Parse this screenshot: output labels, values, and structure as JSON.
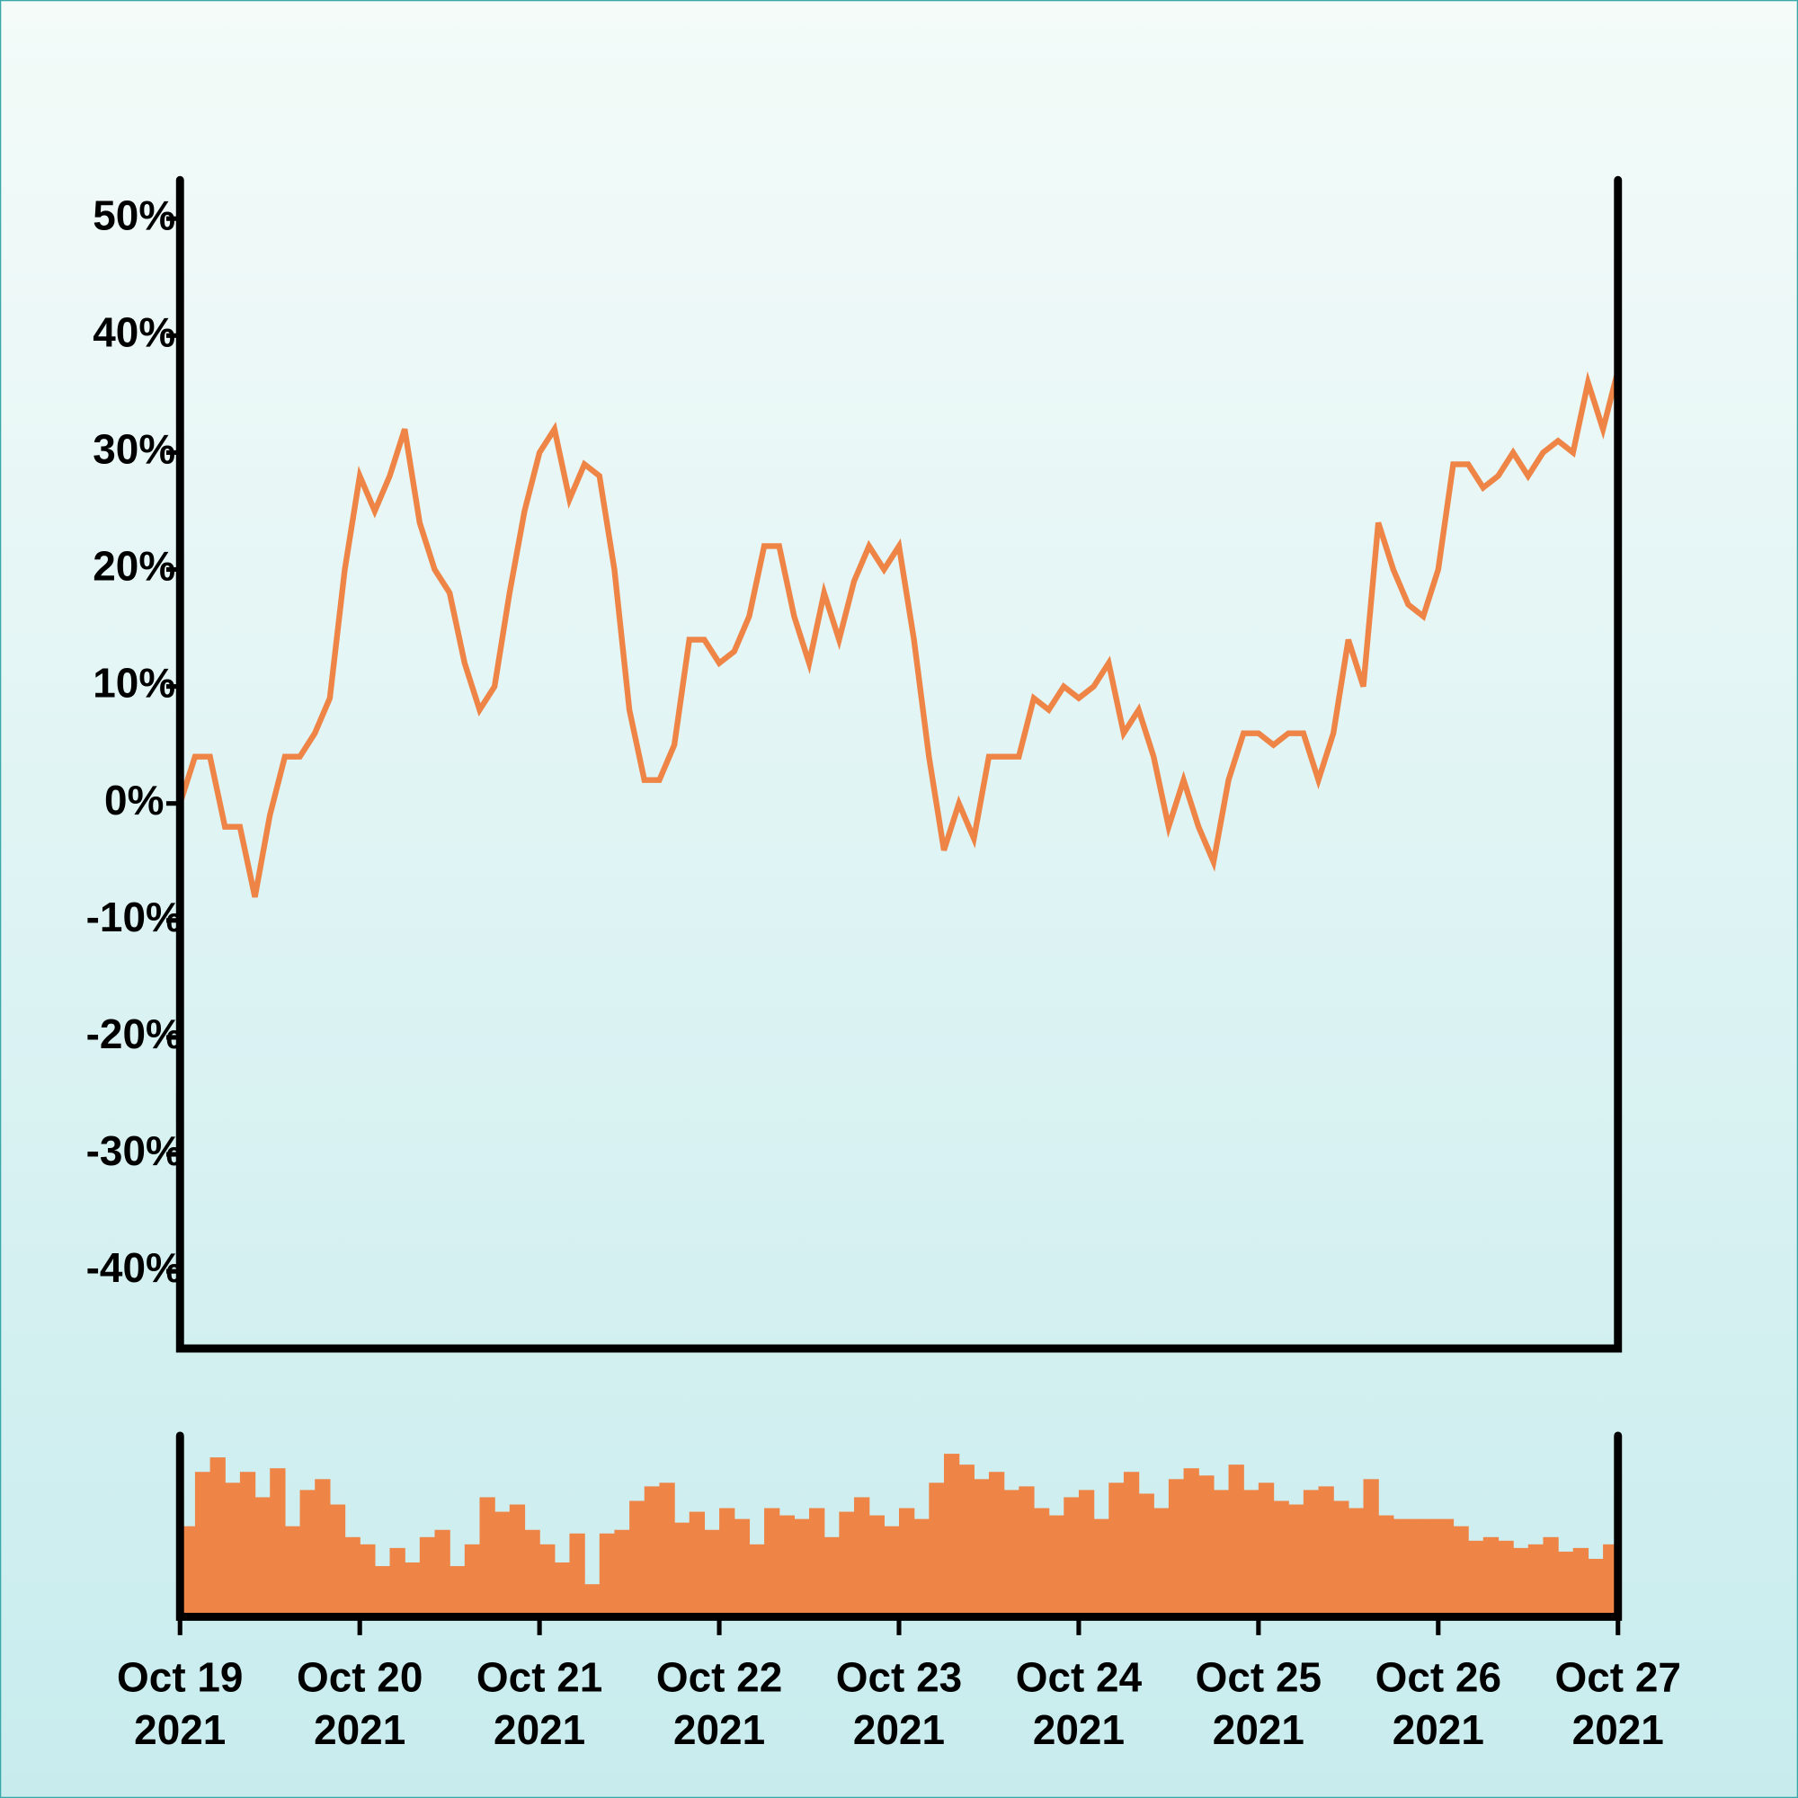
{
  "chart_data": [
    {
      "type": "line",
      "x": [
        0,
        2,
        4,
        6,
        8,
        10,
        12,
        14,
        16,
        18,
        20,
        22,
        24,
        26,
        28,
        30,
        32,
        34,
        36,
        38,
        40,
        42,
        44,
        46,
        48,
        50,
        52,
        54,
        56,
        58,
        60,
        62,
        64,
        66,
        68,
        70,
        72,
        74,
        76,
        78,
        80,
        82,
        84,
        86,
        88,
        90,
        92,
        94,
        96,
        98,
        100,
        102,
        104,
        106,
        108,
        110,
        112,
        114,
        116,
        118,
        120,
        122,
        124,
        126,
        128,
        130,
        132,
        134,
        136,
        138,
        140,
        142,
        144,
        146,
        148,
        150,
        152,
        154,
        156,
        158,
        160,
        162,
        164,
        166,
        168,
        170,
        172,
        174,
        176,
        178,
        180,
        182,
        184,
        186,
        188,
        190,
        192
      ],
      "series": [
        {
          "color": "#ee8547",
          "values": [
            0,
            4,
            4,
            -2,
            -2,
            -8,
            -1,
            4,
            4,
            6,
            9,
            20,
            28,
            25,
            28,
            32,
            24,
            20,
            18,
            12,
            8,
            10,
            18,
            25,
            30,
            32,
            26,
            29,
            28,
            20,
            8,
            2,
            2,
            5,
            14,
            14,
            12,
            13,
            16,
            22,
            22,
            16,
            12,
            18,
            14,
            19,
            22,
            20,
            22,
            14,
            4,
            -4,
            0,
            -3,
            4,
            4,
            4,
            9,
            8,
            10,
            9,
            10,
            12,
            6,
            8,
            4,
            -2,
            2,
            -2,
            -5,
            2,
            6,
            6,
            5,
            6,
            6,
            2,
            6,
            14,
            10,
            24,
            20,
            17,
            16,
            20,
            29,
            29,
            27,
            28,
            30,
            28,
            30,
            31,
            30,
            36,
            32,
            37
          ]
        }
      ],
      "xlim": [
        0,
        192
      ],
      "ylim": [
        -46.6,
        53.3
      ],
      "yticks": [
        {
          "value": -40,
          "label": "-40%"
        },
        {
          "value": -30,
          "label": "-30%"
        },
        {
          "value": -20,
          "label": "-20%"
        },
        {
          "value": -10,
          "label": "-10%"
        },
        {
          "value": 0,
          "label": "0%"
        },
        {
          "value": 10,
          "label": "10%"
        },
        {
          "value": 20,
          "label": "20%"
        },
        {
          "value": 30,
          "label": "30%"
        },
        {
          "value": 40,
          "label": "40%"
        },
        {
          "value": 50,
          "label": "50%"
        }
      ]
    },
    {
      "type": "bar",
      "x": [
        0,
        2,
        4,
        6,
        8,
        10,
        12,
        14,
        16,
        18,
        20,
        22,
        24,
        26,
        28,
        30,
        32,
        34,
        36,
        38,
        40,
        42,
        44,
        46,
        48,
        50,
        52,
        54,
        56,
        58,
        60,
        62,
        64,
        66,
        68,
        70,
        72,
        74,
        76,
        78,
        80,
        82,
        84,
        86,
        88,
        90,
        92,
        94,
        96,
        98,
        100,
        102,
        104,
        106,
        108,
        110,
        112,
        114,
        116,
        118,
        120,
        122,
        124,
        126,
        128,
        130,
        132,
        134,
        136,
        138,
        140,
        142,
        144,
        146,
        148,
        150,
        152,
        154,
        156,
        158,
        160,
        162,
        164,
        166,
        168,
        170,
        172,
        174,
        176,
        178,
        180,
        182,
        184,
        186,
        188,
        190
      ],
      "values": [
        50,
        80,
        88,
        74,
        80,
        66,
        82,
        50,
        70,
        76,
        62,
        44,
        40,
        28,
        38,
        30,
        44,
        48,
        28,
        40,
        66,
        58,
        62,
        48,
        40,
        30,
        46,
        18,
        46,
        48,
        64,
        72,
        74,
        52,
        58,
        48,
        60,
        54,
        40,
        60,
        56,
        54,
        60,
        44,
        58,
        66,
        56,
        50,
        60,
        54,
        74,
        90,
        84,
        76,
        80,
        70,
        72,
        60,
        56,
        66,
        70,
        54,
        74,
        80,
        68,
        60,
        76,
        82,
        78,
        70,
        84,
        70,
        74,
        64,
        62,
        70,
        72,
        64,
        60,
        76,
        56,
        54,
        54,
        54,
        54,
        50,
        42,
        44,
        42,
        38,
        40,
        44,
        36,
        38,
        32,
        40
      ],
      "color": "#ee8547",
      "xlim": [
        0,
        192
      ],
      "ylim": [
        0,
        100
      ],
      "xticks": [
        {
          "value": 0,
          "label": "Oct 19 2021"
        },
        {
          "value": 24,
          "label": "Oct 20 2021"
        },
        {
          "value": 48,
          "label": "Oct 21 2021"
        },
        {
          "value": 72,
          "label": "Oct 22 2021"
        },
        {
          "value": 96,
          "label": "Oct 23 2021"
        },
        {
          "value": 120,
          "label": "Oct 24 2021"
        },
        {
          "value": 144,
          "label": "Oct 25 2021"
        },
        {
          "value": 168,
          "label": "Oct 26 2021"
        },
        {
          "value": 192,
          "label": "Oct 27 2021"
        }
      ]
    }
  ]
}
